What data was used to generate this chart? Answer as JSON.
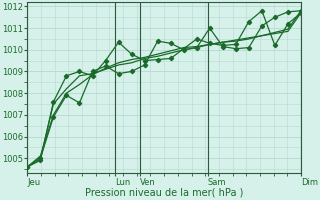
{
  "xlabel": "Pression niveau de la mer( hPa )",
  "bg_color": "#d6f0ea",
  "grid_color": "#b8d8d0",
  "line_color": "#1a6b2a",
  "dark_line_color": "#2d5a3d",
  "ylim": [
    1004.3,
    1012.2
  ],
  "xlim": [
    0,
    100
  ],
  "tick_labels": [
    "Jeu",
    "Lun",
    "Ven",
    "Sam",
    "Dim"
  ],
  "tick_positions": [
    0,
    32,
    41,
    66,
    100
  ],
  "yticks": [
    1005,
    1006,
    1007,
    1008,
    1009,
    1010,
    1011,
    1012
  ],
  "series": [
    [
      1004.6,
      1004.9,
      1007.6,
      1008.8,
      1009.0,
      1008.8,
      1009.5,
      1010.35,
      1009.8,
      1009.5,
      1009.55,
      1009.6,
      1010.05,
      1010.5,
      1010.3,
      1010.2,
      1010.25,
      1011.3,
      1011.8,
      1010.2,
      1011.2,
      1011.7
    ],
    [
      1004.6,
      1005.0,
      1007.5,
      1008.2,
      1008.8,
      1008.9,
      1009.1,
      1009.3,
      1009.4,
      1009.6,
      1009.7,
      1009.85,
      1010.0,
      1010.1,
      1010.25,
      1010.35,
      1010.45,
      1010.55,
      1010.65,
      1010.75,
      1010.85,
      1011.7
    ],
    [
      1004.6,
      1005.1,
      1007.0,
      1008.0,
      1008.4,
      1008.85,
      1009.15,
      1009.4,
      1009.55,
      1009.65,
      1009.8,
      1009.95,
      1010.1,
      1010.15,
      1010.25,
      1010.35,
      1010.4,
      1010.5,
      1010.65,
      1010.8,
      1010.95,
      1011.8
    ],
    [
      1004.6,
      1005.0,
      1006.9,
      1007.9,
      1007.55,
      1009.0,
      1009.25,
      1008.9,
      1009.0,
      1009.3,
      1010.4,
      1010.3,
      1010.0,
      1010.1,
      1011.0,
      1010.15,
      1010.05,
      1010.1,
      1011.1,
      1011.5,
      1011.75,
      1011.8
    ]
  ],
  "series_styles": [
    {
      "lw": 0.9,
      "marker": "D",
      "ms": 2.2,
      "ls": "-"
    },
    {
      "lw": 0.9,
      "marker": null,
      "ms": 0,
      "ls": "-"
    },
    {
      "lw": 0.9,
      "marker": null,
      "ms": 0,
      "ls": "-"
    },
    {
      "lw": 0.9,
      "marker": "D",
      "ms": 2.2,
      "ls": "-"
    }
  ]
}
